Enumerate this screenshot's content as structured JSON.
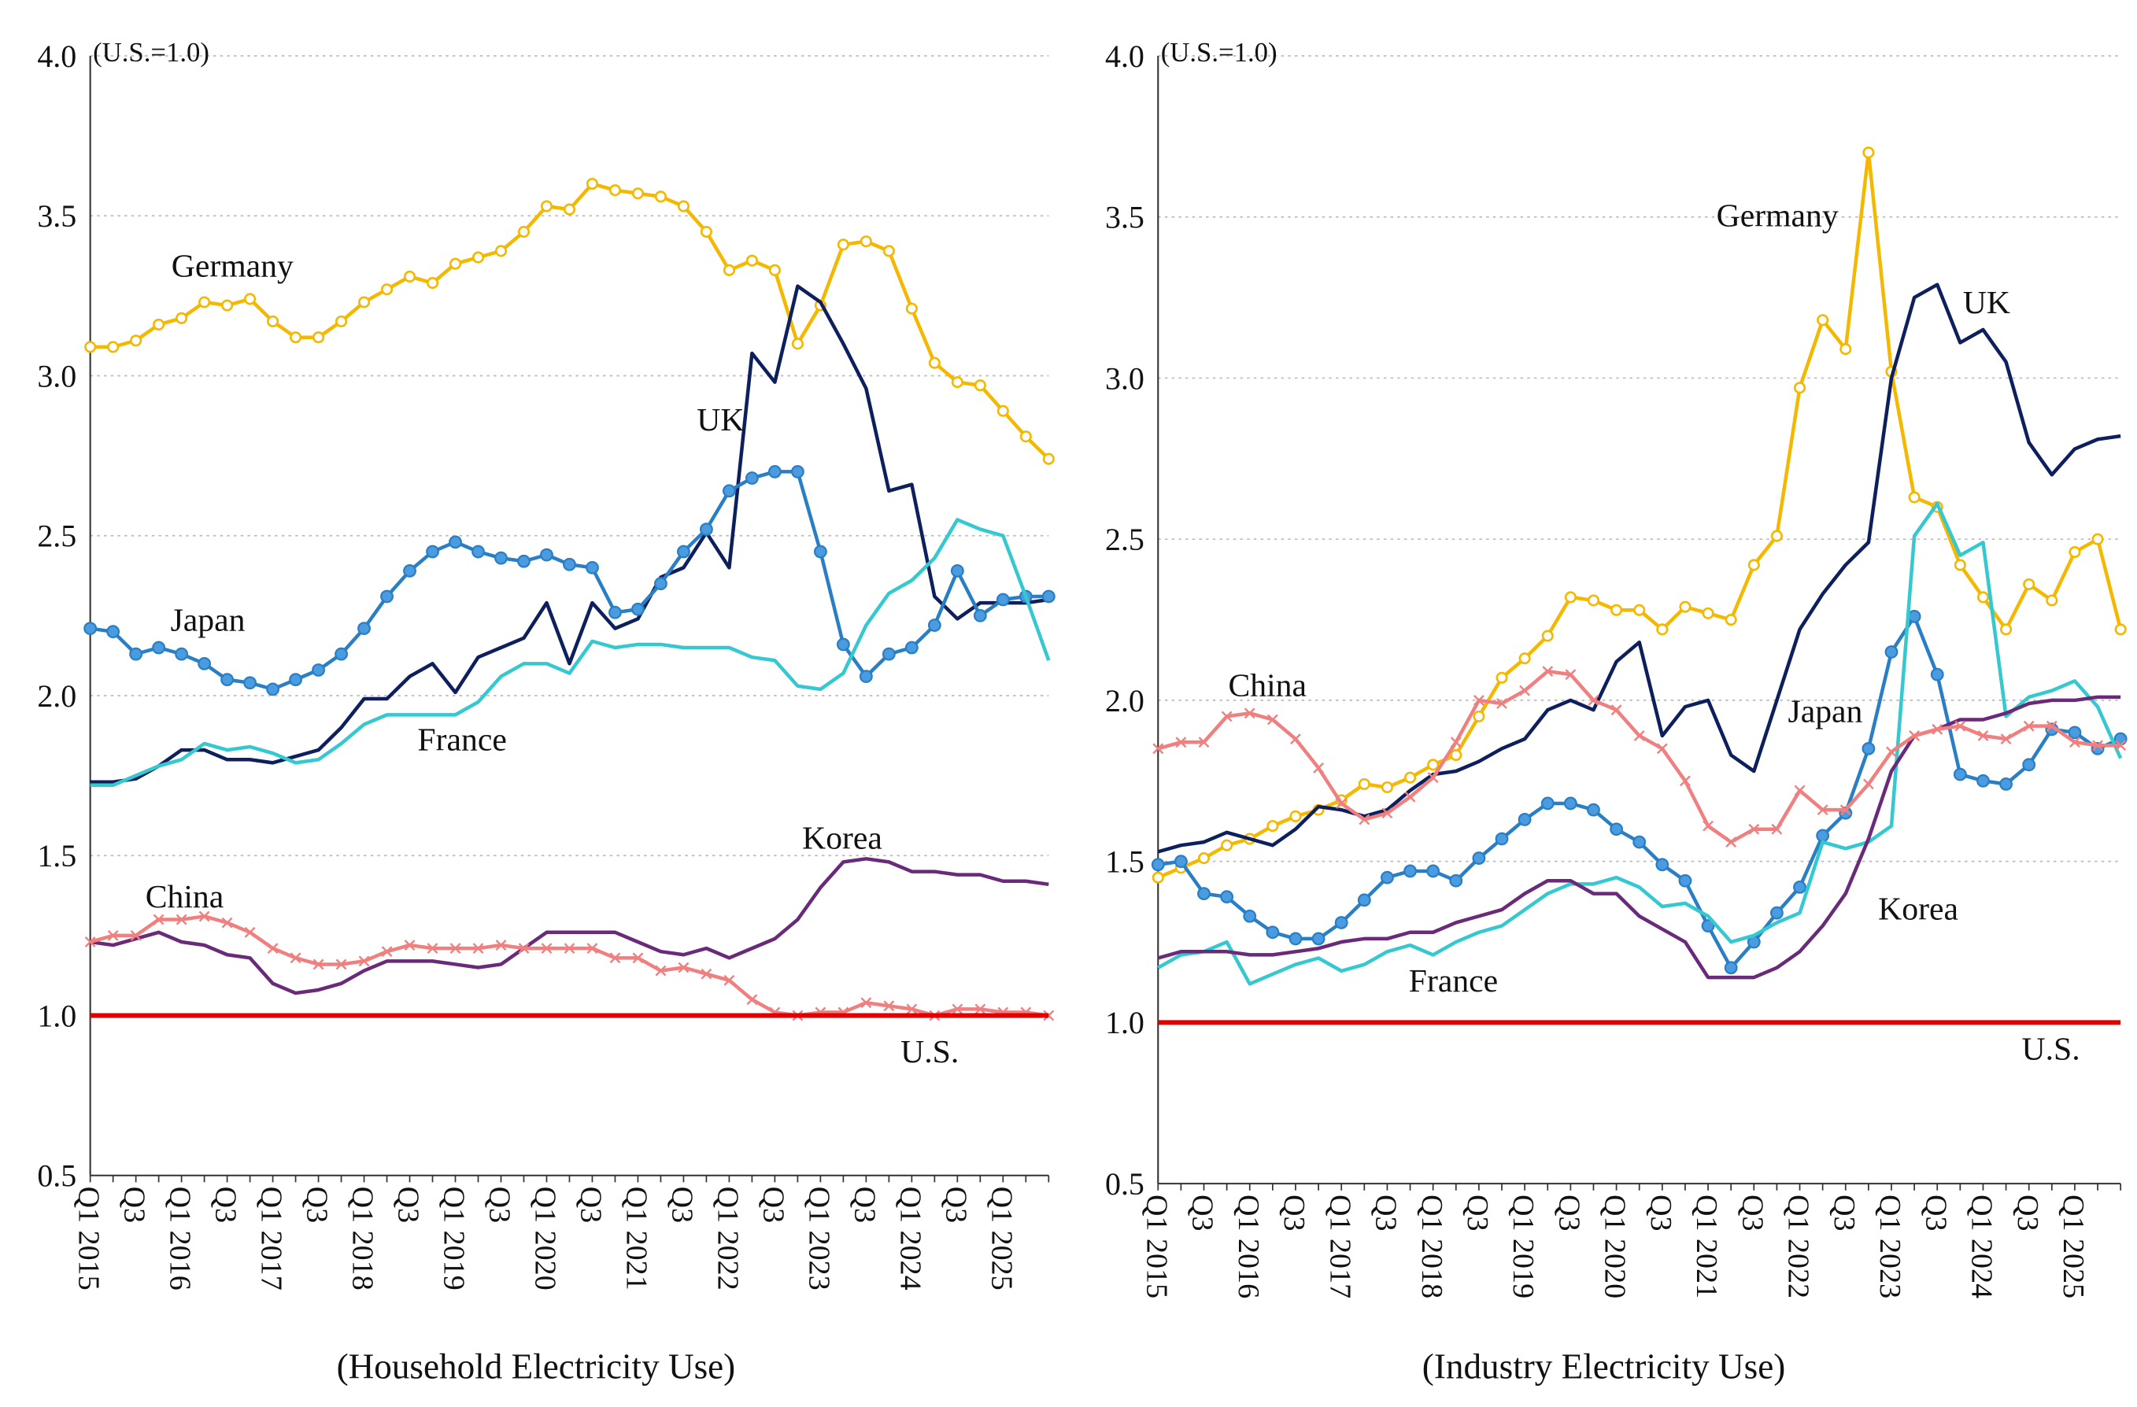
{
  "chart_data": [
    {
      "type": "line",
      "annotation": "(U.S.=1.0)",
      "subtitle": "(Household Electricity Use)",
      "categories": [
        "Q1 2015",
        null,
        "Q3",
        null,
        "Q1 2016",
        null,
        "Q3",
        null,
        "Q1 2017",
        null,
        "Q3",
        null,
        "Q1 2018",
        null,
        "Q3",
        null,
        "Q1 2019",
        null,
        "Q3",
        null,
        "Q1 2020",
        null,
        "Q3",
        null,
        "Q1 2021",
        null,
        "Q3",
        null,
        "Q1 2022",
        null,
        "Q3",
        null,
        "Q1 2023",
        null,
        "Q3",
        null,
        "Q1 2024",
        null,
        "Q3",
        null,
        "Q1 2025",
        null,
        null
      ],
      "ylim": [
        0.5,
        4.0
      ],
      "yticks": [
        0.5,
        {
          "value": 1,
          "label": "1.0"
        },
        1.5,
        {
          "value": 2,
          "label": "2.0"
        },
        2.5,
        {
          "value": 3,
          "label": "3.0"
        },
        3.5,
        {
          "value": 4,
          "label": "4.0"
        }
      ],
      "grid": true,
      "series": [
        {
          "name": "Germany",
          "color": "#f5b800",
          "marker": "circle-open",
          "values": [
            3.09,
            3.09,
            3.11,
            3.16,
            3.18,
            3.23,
            3.22,
            3.24,
            3.17,
            3.12,
            3.12,
            3.17,
            3.23,
            3.27,
            3.31,
            3.29,
            3.35,
            3.37,
            3.39,
            3.45,
            3.53,
            3.52,
            3.6,
            3.58,
            3.57,
            3.56,
            3.53,
            3.45,
            3.33,
            3.36,
            3.33,
            3.1,
            3.22,
            3.41,
            3.42,
            3.39,
            3.21,
            3.04,
            2.98,
            2.97,
            2.89,
            2.81,
            2.74
          ]
        },
        {
          "name": "UK",
          "color": "#0d1f5c",
          "marker": null,
          "values": [
            1.73,
            1.73,
            1.74,
            1.78,
            1.83,
            1.83,
            1.8,
            1.8,
            1.79,
            1.81,
            1.83,
            1.9,
            1.99,
            1.99,
            2.06,
            2.1,
            2.01,
            2.12,
            2.15,
            2.18,
            2.29,
            2.1,
            2.29,
            2.21,
            2.24,
            2.37,
            2.4,
            2.51,
            2.4,
            3.07,
            2.98,
            3.28,
            3.23,
            3.1,
            2.96,
            2.64,
            2.66,
            2.31,
            2.24,
            2.29,
            2.29,
            2.29,
            2.3
          ]
        },
        {
          "name": "Japan",
          "color": "#2a7fc4",
          "marker": "circle",
          "values": [
            2.21,
            2.2,
            2.13,
            2.15,
            2.13,
            2.1,
            2.05,
            2.04,
            2.02,
            2.05,
            2.08,
            2.13,
            2.21,
            2.31,
            2.39,
            2.45,
            2.48,
            2.45,
            2.43,
            2.42,
            2.44,
            2.41,
            2.4,
            2.26,
            2.27,
            2.35,
            2.45,
            2.52,
            2.64,
            2.68,
            2.7,
            2.7,
            2.45,
            2.16,
            2.06,
            2.13,
            2.15,
            2.22,
            2.39,
            2.25,
            2.3,
            2.31,
            2.31
          ]
        },
        {
          "name": "France",
          "color": "#35c8d0",
          "marker": null,
          "values": [
            1.72,
            1.72,
            1.75,
            1.78,
            1.8,
            1.85,
            1.83,
            1.84,
            1.82,
            1.79,
            1.8,
            1.85,
            1.91,
            1.94,
            1.94,
            1.94,
            1.94,
            1.98,
            2.06,
            2.1,
            2.1,
            2.07,
            2.17,
            2.15,
            2.16,
            2.16,
            2.15,
            2.15,
            2.15,
            2.12,
            2.11,
            2.03,
            2.02,
            2.07,
            2.22,
            2.32,
            2.36,
            2.43,
            2.55,
            2.52,
            2.5,
            2.31,
            2.11
          ]
        },
        {
          "name": "Korea",
          "color": "#6a2a7a",
          "marker": null,
          "values": [
            1.23,
            1.22,
            1.24,
            1.26,
            1.23,
            1.22,
            1.19,
            1.18,
            1.1,
            1.07,
            1.08,
            1.1,
            1.14,
            1.17,
            1.17,
            1.17,
            1.16,
            1.15,
            1.16,
            1.21,
            1.26,
            1.26,
            1.26,
            1.26,
            1.23,
            1.2,
            1.19,
            1.21,
            1.18,
            1.21,
            1.24,
            1.3,
            1.4,
            1.48,
            1.49,
            1.48,
            1.45,
            1.45,
            1.44,
            1.44,
            1.42,
            1.42,
            1.41
          ]
        },
        {
          "name": "China",
          "color": "#f08080",
          "marker": "x",
          "values": [
            1.23,
            1.25,
            1.25,
            1.3,
            1.3,
            1.31,
            1.29,
            1.26,
            1.21,
            1.18,
            1.16,
            1.16,
            1.17,
            1.2,
            1.22,
            1.21,
            1.21,
            1.21,
            1.22,
            1.21,
            1.21,
            1.21,
            1.21,
            1.18,
            1.18,
            1.14,
            1.15,
            1.13,
            1.11,
            1.05,
            1.01,
            1.0,
            1.01,
            1.01,
            1.04,
            1.03,
            1.02,
            1.0,
            1.02,
            1.02,
            1.01,
            1.01,
            1.0
          ]
        },
        {
          "name": "U.S.",
          "color": "#e00000",
          "marker": null,
          "values": [
            1,
            1,
            1,
            1,
            1,
            1,
            1,
            1,
            1,
            1,
            1,
            1,
            1,
            1,
            1,
            1,
            1,
            1,
            1,
            1,
            1,
            1,
            1,
            1,
            1,
            1,
            1,
            1,
            1,
            1,
            1,
            1,
            1,
            1,
            1,
            1,
            1,
            1,
            1,
            1,
            1,
            1,
            1
          ]
        }
      ]
    },
    {
      "type": "line",
      "annotation": "(U.S.=1.0)",
      "subtitle": "(Industry Electricity Use)",
      "categories": [
        "Q1 2015",
        null,
        "Q3",
        null,
        "Q1 2016",
        null,
        "Q3",
        null,
        "Q1 2017",
        null,
        "Q3",
        null,
        "Q1 2018",
        null,
        "Q3",
        null,
        "Q1 2019",
        null,
        "Q3",
        null,
        "Q1 2020",
        null,
        "Q3",
        null,
        "Q1 2021",
        null,
        "Q3",
        null,
        "Q1 2022",
        null,
        "Q3",
        null,
        "Q1 2023",
        null,
        "Q3",
        null,
        "Q1 2024",
        null,
        "Q3",
        null,
        "Q1 2025",
        null,
        null
      ],
      "ylim": [
        0.5,
        4.0
      ],
      "yticks": [
        0.5,
        {
          "value": 1,
          "label": "1.0"
        },
        1.5,
        {
          "value": 2,
          "label": "2.0"
        },
        2.5,
        {
          "value": 3,
          "label": "3.0"
        },
        3.5,
        {
          "value": 4,
          "label": "4.0"
        }
      ],
      "grid": true,
      "series": [
        {
          "name": "Germany",
          "color": "#f5b800",
          "marker": "circle-open",
          "values": [
            1.45,
            1.48,
            1.51,
            1.55,
            1.57,
            1.61,
            1.64,
            1.66,
            1.69,
            1.74,
            1.73,
            1.76,
            1.8,
            1.83,
            1.95,
            2.07,
            2.13,
            2.2,
            2.32,
            2.31,
            2.28,
            2.28,
            2.22,
            2.29,
            2.27,
            2.25,
            2.42,
            2.51,
            2.97,
            3.18,
            3.09,
            3.7,
            3.02,
            2.63,
            2.6,
            2.42,
            2.32,
            2.22,
            2.36,
            2.31,
            2.46,
            2.5,
            2.22
          ]
        },
        {
          "name": "UK",
          "color": "#0d1f5c",
          "marker": null,
          "values": [
            1.53,
            1.55,
            1.56,
            1.59,
            1.57,
            1.55,
            1.6,
            1.67,
            1.66,
            1.64,
            1.66,
            1.72,
            1.77,
            1.78,
            1.81,
            1.85,
            1.88,
            1.97,
            2.0,
            1.97,
            2.12,
            2.18,
            1.89,
            1.98,
            2.0,
            1.83,
            1.78,
            2.0,
            2.22,
            2.33,
            2.42,
            2.49,
            3.0,
            3.25,
            3.29,
            3.11,
            3.15,
            3.05,
            2.8,
            2.7,
            2.78,
            2.81,
            2.82
          ]
        },
        {
          "name": "Japan",
          "color": "#2a7fc4",
          "marker": "circle",
          "values": [
            1.49,
            1.5,
            1.4,
            1.39,
            1.33,
            1.28,
            1.26,
            1.26,
            1.31,
            1.38,
            1.45,
            1.47,
            1.47,
            1.44,
            1.51,
            1.57,
            1.63,
            1.68,
            1.68,
            1.66,
            1.6,
            1.56,
            1.49,
            1.44,
            1.3,
            1.17,
            1.25,
            1.34,
            1.42,
            1.58,
            1.65,
            1.85,
            2.15,
            2.26,
            2.08,
            1.77,
            1.75,
            1.74,
            1.8,
            1.91,
            1.9,
            1.85,
            1.88
          ]
        },
        {
          "name": "France",
          "color": "#35c8d0",
          "marker": null,
          "values": [
            1.17,
            1.21,
            1.22,
            1.25,
            1.12,
            1.15,
            1.18,
            1.2,
            1.16,
            1.18,
            1.22,
            1.24,
            1.21,
            1.25,
            1.28,
            1.3,
            1.35,
            1.4,
            1.43,
            1.43,
            1.45,
            1.42,
            1.36,
            1.37,
            1.33,
            1.25,
            1.27,
            1.31,
            1.34,
            1.56,
            1.54,
            1.56,
            1.61,
            2.51,
            2.61,
            2.45,
            2.49,
            1.95,
            2.01,
            2.03,
            2.06,
            1.98,
            1.82
          ]
        },
        {
          "name": "Korea",
          "color": "#6a2a7a",
          "marker": null,
          "values": [
            1.2,
            1.22,
            1.22,
            1.22,
            1.21,
            1.21,
            1.22,
            1.23,
            1.25,
            1.26,
            1.26,
            1.28,
            1.28,
            1.31,
            1.33,
            1.35,
            1.4,
            1.44,
            1.44,
            1.4,
            1.4,
            1.33,
            1.29,
            1.25,
            1.14,
            1.14,
            1.14,
            1.17,
            1.22,
            1.3,
            1.4,
            1.57,
            1.78,
            1.89,
            1.91,
            1.94,
            1.94,
            1.96,
            1.99,
            2.0,
            2.0,
            2.01,
            2.01
          ]
        },
        {
          "name": "China",
          "color": "#f08080",
          "marker": "x",
          "values": [
            1.85,
            1.87,
            1.87,
            1.95,
            1.96,
            1.94,
            1.88,
            1.79,
            1.68,
            1.63,
            1.65,
            1.7,
            1.76,
            1.87,
            2.0,
            1.99,
            2.03,
            2.09,
            2.08,
            2.0,
            1.97,
            1.89,
            1.85,
            1.75,
            1.61,
            1.56,
            1.6,
            1.6,
            1.72,
            1.66,
            1.66,
            1.74,
            1.84,
            1.89,
            1.91,
            1.92,
            1.89,
            1.88,
            1.92,
            1.92,
            1.87,
            1.86,
            1.86
          ]
        },
        {
          "name": "U.S.",
          "color": "#e00000",
          "marker": null,
          "values": [
            1,
            1,
            1,
            1,
            1,
            1,
            1,
            1,
            1,
            1,
            1,
            1,
            1,
            1,
            1,
            1,
            1,
            1,
            1,
            1,
            1,
            1,
            1,
            1,
            1,
            1,
            1,
            1,
            1,
            1,
            1,
            1,
            1,
            1,
            1,
            1,
            1,
            1,
            1,
            1,
            1,
            1,
            1
          ]
        }
      ]
    }
  ]
}
